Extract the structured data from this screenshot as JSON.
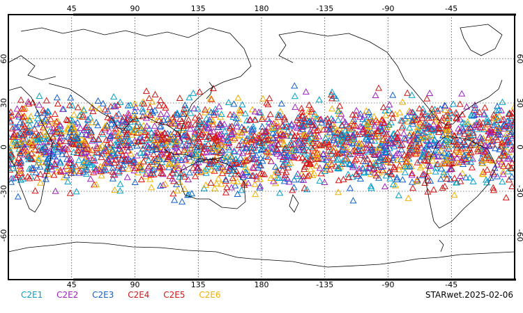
{
  "map": {
    "center_longitude": 180,
    "lon_ticks": [
      "45",
      "90",
      "135",
      "180",
      "-135",
      "-90",
      "-45"
    ],
    "lat_ticks_left": [
      "60",
      "30",
      "0",
      "-30",
      "-60"
    ],
    "lat_ticks_right": [
      "60",
      "30",
      "0",
      "-30",
      "-60"
    ],
    "lat_range": [
      -90,
      90
    ],
    "lon_range": [
      0,
      360
    ],
    "grid": true,
    "marker_shape": "open-triangle",
    "marker_lat_band": [
      -40,
      45
    ]
  },
  "legend": [
    {
      "label": "C2E1",
      "color": "#00a0c8"
    },
    {
      "label": "C2E2",
      "color": "#a020c0"
    },
    {
      "label": "C2E3",
      "color": "#1060d0"
    },
    {
      "label": "C2E4",
      "color": "#c81818"
    },
    {
      "label": "C2E5",
      "color": "#e01010"
    },
    {
      "label": "C2E6",
      "color": "#f0b000"
    }
  ],
  "stamp": "STARwet.2025-02-06"
}
